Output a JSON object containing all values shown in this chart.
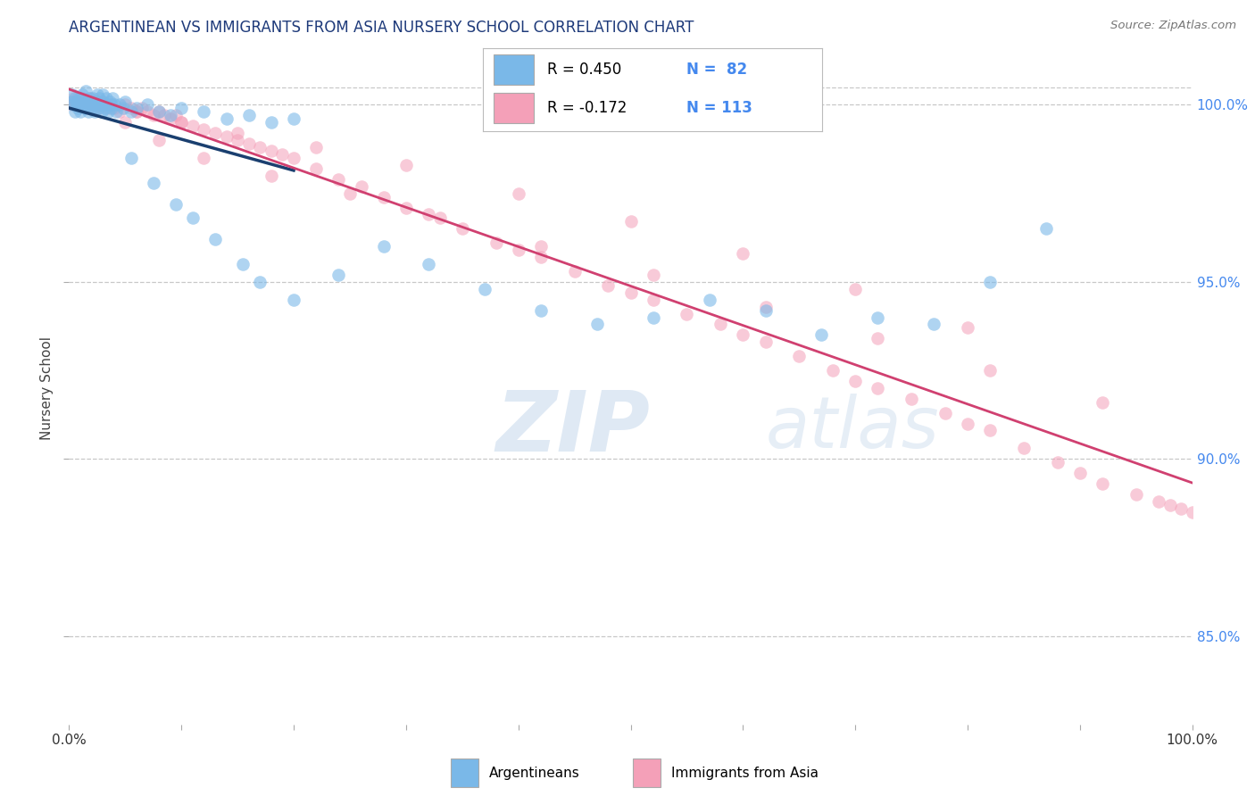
{
  "title": "ARGENTINEAN VS IMMIGRANTS FROM ASIA NURSERY SCHOOL CORRELATION CHART",
  "source": "Source: ZipAtlas.com",
  "ylabel": "Nursery School",
  "xlim": [
    0.0,
    100.0
  ],
  "ylim": [
    82.5,
    101.5
  ],
  "yticks": [
    85.0,
    90.0,
    95.0,
    100.0
  ],
  "ytick_labels": [
    "85.0%",
    "90.0%",
    "95.0%",
    "100.0%"
  ],
  "blue_color": "#7ab8e8",
  "blue_edge_color": "#5a9fd4",
  "pink_color": "#f4a0b8",
  "pink_edge_color": "#e07090",
  "blue_line_color": "#1a3f6f",
  "pink_line_color": "#d04070",
  "background_color": "#ffffff",
  "grid_color": "#c8c8c8",
  "title_color": "#1e3a7a",
  "tick_color_right": "#4488ee",
  "watermark_color": "#c5d8f0",
  "source_color": "#777777",
  "blue_x": [
    0.2,
    0.3,
    0.4,
    0.5,
    0.5,
    0.6,
    0.7,
    0.8,
    0.9,
    1.0,
    1.0,
    1.1,
    1.2,
    1.3,
    1.4,
    1.5,
    1.5,
    1.6,
    1.7,
    1.8,
    1.9,
    2.0,
    2.0,
    2.1,
    2.2,
    2.3,
    2.4,
    2.5,
    2.5,
    2.6,
    2.7,
    2.8,
    2.9,
    3.0,
    3.0,
    3.1,
    3.2,
    3.3,
    3.4,
    3.5,
    3.6,
    3.7,
    3.8,
    3.9,
    4.0,
    4.2,
    4.5,
    4.8,
    5.0,
    5.5,
    6.0,
    7.0,
    8.0,
    9.0,
    10.0,
    12.0,
    14.0,
    16.0,
    18.0,
    20.0,
    5.5,
    7.5,
    9.5,
    11.0,
    13.0,
    15.5,
    17.0,
    20.0,
    24.0,
    28.0,
    32.0,
    37.0,
    42.0,
    47.0,
    52.0,
    57.0,
    62.0,
    67.0,
    72.0,
    77.0,
    82.0,
    87.0
  ],
  "blue_y": [
    100.1,
    100.3,
    100.0,
    99.8,
    100.2,
    100.1,
    100.0,
    99.9,
    100.2,
    100.0,
    99.8,
    100.1,
    100.3,
    100.0,
    99.9,
    100.1,
    100.4,
    100.0,
    99.8,
    100.2,
    100.0,
    99.9,
    100.1,
    100.2,
    100.0,
    99.8,
    100.1,
    100.3,
    100.0,
    99.9,
    100.2,
    100.0,
    99.8,
    100.1,
    100.3,
    100.0,
    99.9,
    100.2,
    100.0,
    99.8,
    100.1,
    100.0,
    99.9,
    100.2,
    100.0,
    99.8,
    100.0,
    99.9,
    100.1,
    99.8,
    99.9,
    100.0,
    99.8,
    99.7,
    99.9,
    99.8,
    99.6,
    99.7,
    99.5,
    99.6,
    98.5,
    97.8,
    97.2,
    96.8,
    96.2,
    95.5,
    95.0,
    94.5,
    95.2,
    96.0,
    95.5,
    94.8,
    94.2,
    93.8,
    94.0,
    94.5,
    94.2,
    93.5,
    94.0,
    93.8,
    95.0,
    96.5
  ],
  "pink_x": [
    0.2,
    0.3,
    0.4,
    0.5,
    0.6,
    0.7,
    0.8,
    0.9,
    1.0,
    1.1,
    1.2,
    1.3,
    1.4,
    1.5,
    1.6,
    1.7,
    1.8,
    1.9,
    2.0,
    2.1,
    2.2,
    2.3,
    2.4,
    2.5,
    2.6,
    2.7,
    2.8,
    2.9,
    3.0,
    3.2,
    3.5,
    3.8,
    4.0,
    4.5,
    5.0,
    5.5,
    6.0,
    6.5,
    7.0,
    7.5,
    8.0,
    8.5,
    9.0,
    9.5,
    10.0,
    11.0,
    12.0,
    13.0,
    14.0,
    15.0,
    16.0,
    17.0,
    18.0,
    19.0,
    20.0,
    22.0,
    24.0,
    26.0,
    28.0,
    30.0,
    32.0,
    35.0,
    38.0,
    40.0,
    42.0,
    45.0,
    48.0,
    50.0,
    52.0,
    55.0,
    58.0,
    60.0,
    62.0,
    65.0,
    68.0,
    70.0,
    72.0,
    75.0,
    78.0,
    80.0,
    82.0,
    85.0,
    88.0,
    90.0,
    92.0,
    95.0,
    97.0,
    98.0,
    99.0,
    100.0,
    5.0,
    8.0,
    12.0,
    18.0,
    25.0,
    33.0,
    42.0,
    52.0,
    62.0,
    72.0,
    82.0,
    92.0,
    3.0,
    6.0,
    10.0,
    15.0,
    22.0,
    30.0,
    40.0,
    50.0,
    60.0,
    70.0,
    80.0
  ],
  "pink_y": [
    100.0,
    100.1,
    100.2,
    100.0,
    100.1,
    100.0,
    100.2,
    100.1,
    100.0,
    100.1,
    100.2,
    100.0,
    100.1,
    100.0,
    99.9,
    100.1,
    100.0,
    100.2,
    100.0,
    100.1,
    100.0,
    99.9,
    100.0,
    100.1,
    100.0,
    99.9,
    100.0,
    100.1,
    100.0,
    100.0,
    99.9,
    100.0,
    99.9,
    99.8,
    100.0,
    99.9,
    99.8,
    99.9,
    99.8,
    99.7,
    99.8,
    99.7,
    99.6,
    99.7,
    99.5,
    99.4,
    99.3,
    99.2,
    99.1,
    99.0,
    98.9,
    98.8,
    98.7,
    98.6,
    98.5,
    98.2,
    97.9,
    97.7,
    97.4,
    97.1,
    96.9,
    96.5,
    96.1,
    95.9,
    95.7,
    95.3,
    94.9,
    94.7,
    94.5,
    94.1,
    93.8,
    93.5,
    93.3,
    92.9,
    92.5,
    92.2,
    92.0,
    91.7,
    91.3,
    91.0,
    90.8,
    90.3,
    89.9,
    89.6,
    89.3,
    89.0,
    88.8,
    88.7,
    88.6,
    88.5,
    99.5,
    99.0,
    98.5,
    98.0,
    97.5,
    96.8,
    96.0,
    95.2,
    94.3,
    93.4,
    92.5,
    91.6,
    100.0,
    99.8,
    99.5,
    99.2,
    98.8,
    98.3,
    97.5,
    96.7,
    95.8,
    94.8,
    93.7
  ]
}
